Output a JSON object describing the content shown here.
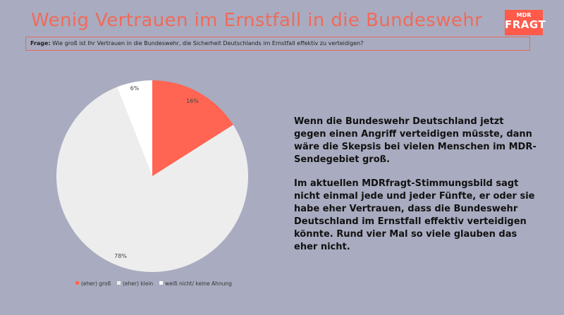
{
  "header": {
    "title": "Wenig Vertrauen im Ernstfall in die Bundeswehr",
    "logo_top": "MDR",
    "logo_bottom": "FRAGT",
    "question_label": "Frage:",
    "question_text": "Wie groß ist Ihr Vertrauen in die Bundeswehr, die Sicherheit Deutschlands im Ernstfall effektiv zu verteidigen?"
  },
  "chart_data": {
    "type": "pie",
    "title": "",
    "slices": [
      {
        "label": "(eher) groß",
        "value": 16,
        "display": "16%",
        "color": "#ff6552"
      },
      {
        "label": "(eher) klein",
        "value": 78,
        "display": "78%",
        "color": "#ededed"
      },
      {
        "label": "weiß nicht/ keine Ahnung",
        "value": 6,
        "display": "6%",
        "color": "#ffffff"
      }
    ],
    "legend": "bottom"
  },
  "text": {
    "paragraph1": "Wenn die Bundeswehr Deutschland jetzt gegen einen Angriff verteidigen müsste, dann wäre die Skepsis bei vielen Menschen im MDR-Sendegebiet groß.",
    "paragraph2": "Im aktuellen MDRfragt-Stimmungsbild sagt nicht einmal jede und jeder Fünfte, er oder sie habe eher Vertrauen, dass die Bundeswehr Deutschland im Ernstfall effektiv verteidigen könnte. Rund vier Mal so viele glauben das eher nicht."
  }
}
